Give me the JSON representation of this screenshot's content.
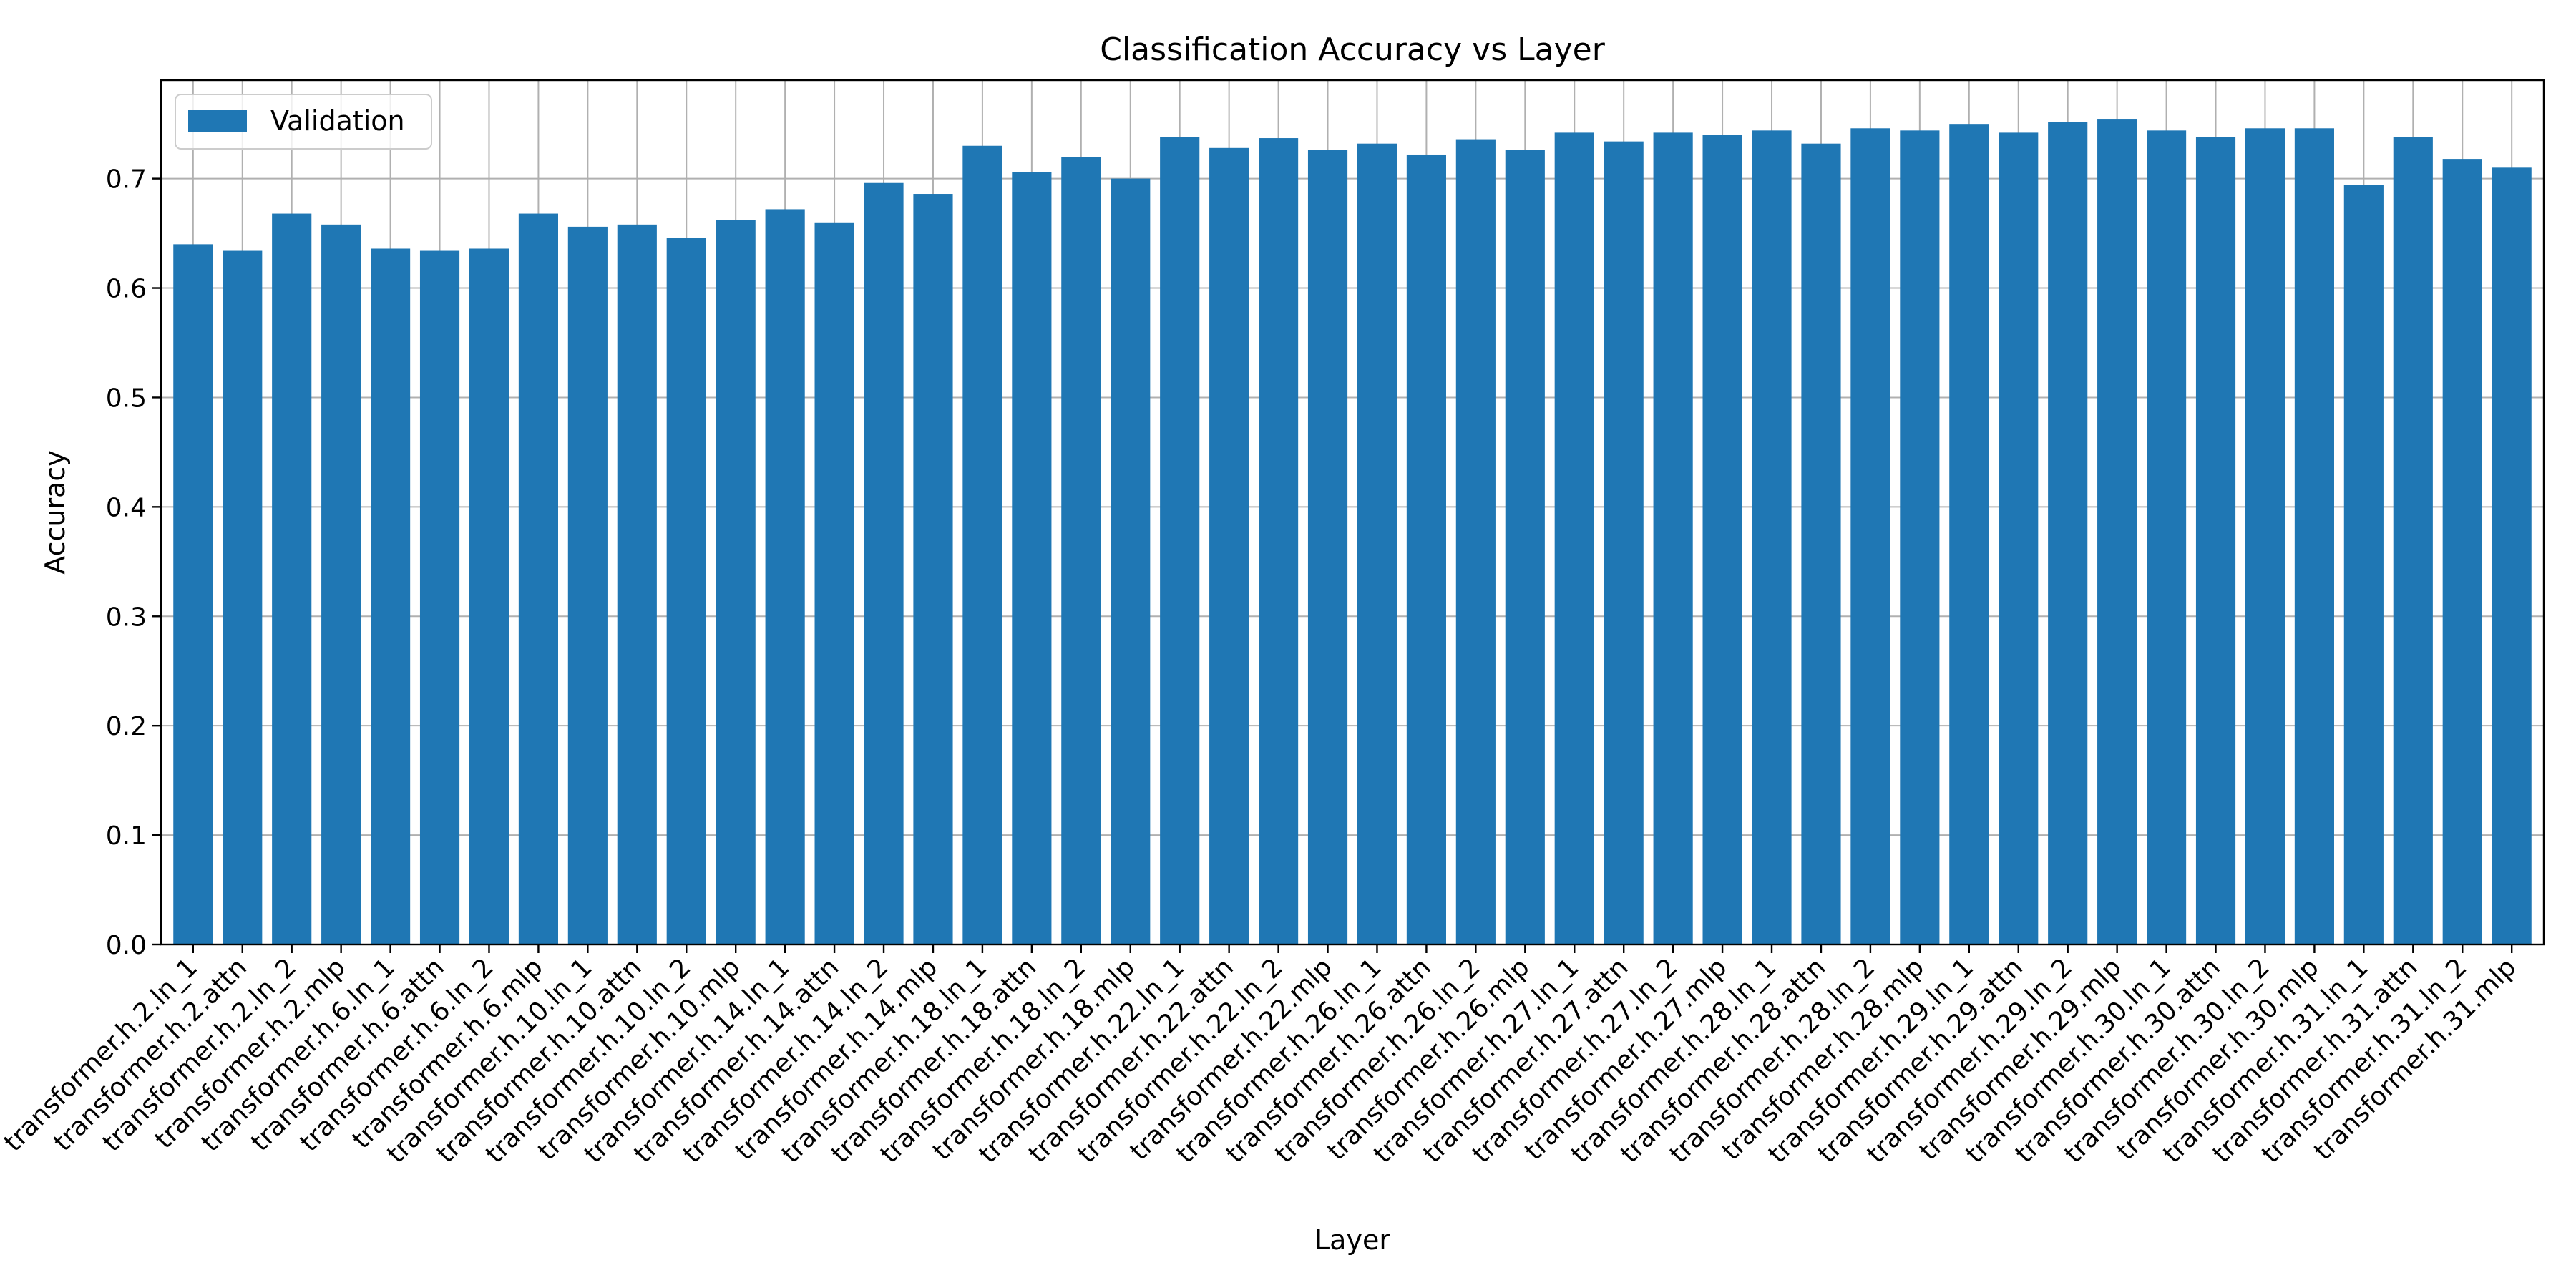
{
  "chart_data": {
    "type": "bar",
    "title": "Classification Accuracy vs Layer",
    "xlabel": "Layer",
    "ylabel": "Accuracy",
    "ylim": [
      0,
      0.79
    ],
    "yticks": [
      "0.0",
      "0.1",
      "0.2",
      "0.3",
      "0.4",
      "0.5",
      "0.6",
      "0.7"
    ],
    "grid": true,
    "legend": "top-left",
    "series": [
      {
        "name": "Validation",
        "color": "#1f77b4",
        "values": [
          0.64,
          0.634,
          0.668,
          0.658,
          0.636,
          0.634,
          0.636,
          0.668,
          0.656,
          0.658,
          0.646,
          0.662,
          0.672,
          0.66,
          0.696,
          0.686,
          0.73,
          0.706,
          0.72,
          0.7,
          0.738,
          0.728,
          0.737,
          0.726,
          0.732,
          0.722,
          0.736,
          0.726,
          0.742,
          0.734,
          0.742,
          0.74,
          0.744,
          0.732,
          0.746,
          0.744,
          0.75,
          0.742,
          0.752,
          0.754,
          0.744,
          0.738,
          0.746,
          0.746,
          0.694,
          0.738,
          0.718,
          0.71
        ]
      }
    ],
    "categories": [
      "transformer.h.2.ln_1",
      "transformer.h.2.attn",
      "transformer.h.2.ln_2",
      "transformer.h.2.mlp",
      "transformer.h.6.ln_1",
      "transformer.h.6.attn",
      "transformer.h.6.ln_2",
      "transformer.h.6.mlp",
      "transformer.h.10.ln_1",
      "transformer.h.10.attn",
      "transformer.h.10.ln_2",
      "transformer.h.10.mlp",
      "transformer.h.14.ln_1",
      "transformer.h.14.attn",
      "transformer.h.14.ln_2",
      "transformer.h.14.mlp",
      "transformer.h.18.ln_1",
      "transformer.h.18.attn",
      "transformer.h.18.ln_2",
      "transformer.h.18.mlp",
      "transformer.h.22.ln_1",
      "transformer.h.22.attn",
      "transformer.h.22.ln_2",
      "transformer.h.22.mlp",
      "transformer.h.26.ln_1",
      "transformer.h.26.attn",
      "transformer.h.26.ln_2",
      "transformer.h.26.mlp",
      "transformer.h.27.ln_1",
      "transformer.h.27.attn",
      "transformer.h.27.ln_2",
      "transformer.h.27.mlp",
      "transformer.h.28.ln_1",
      "transformer.h.28.attn",
      "transformer.h.28.ln_2",
      "transformer.h.28.mlp",
      "transformer.h.29.ln_1",
      "transformer.h.29.attn",
      "transformer.h.29.ln_2",
      "transformer.h.29.mlp",
      "transformer.h.30.ln_1",
      "transformer.h.30.attn",
      "transformer.h.30.ln_2",
      "transformer.h.30.mlp",
      "transformer.h.31.ln_1",
      "transformer.h.31.attn",
      "transformer.h.31.ln_2",
      "transformer.h.31.mlp"
    ]
  }
}
